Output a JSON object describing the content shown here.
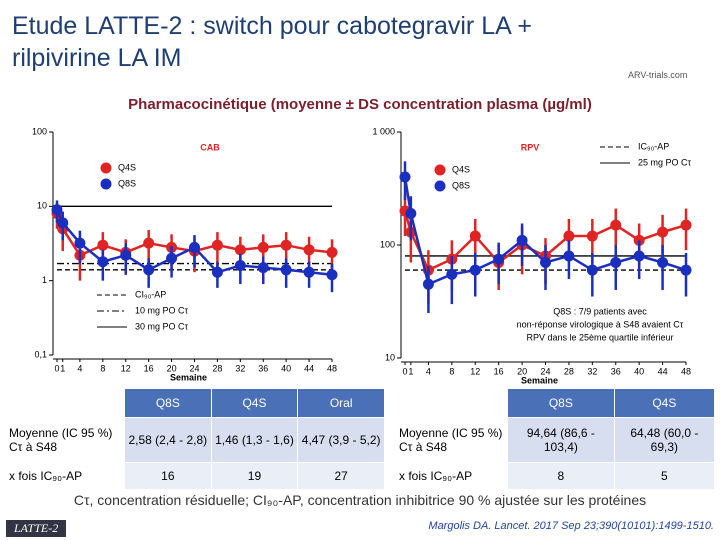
{
  "title": "Etude LATTE-2 : switch pour cabotegravir LA + rilpivirine LA IM",
  "logo": "ARV-trials.com",
  "subtitle": "Pharmacocinétique (moyenne ± DS concentration plasma (µg/ml)",
  "chart_data": [
    {
      "type": "line",
      "title": "CAB",
      "x_label": "Semaine",
      "log_scale": true,
      "x": [
        0,
        1,
        4,
        8,
        12,
        16,
        20,
        24,
        28,
        32,
        36,
        40,
        44,
        48
      ],
      "xlim": [
        0,
        48
      ],
      "xticks": [
        0,
        1,
        4,
        8,
        12,
        16,
        20,
        24,
        28,
        32,
        36,
        40,
        44,
        48
      ],
      "ylim": [
        0.1,
        100
      ],
      "yticks": [
        {
          "value": 0.1,
          "label": "0,1"
        },
        1,
        10,
        100
      ],
      "series": [
        {
          "name": "Q4S",
          "color": "#e02424",
          "values": [
            8,
            5.0,
            2.2,
            3.0,
            2.4,
            3.2,
            2.8,
            2.5,
            3.0,
            2.6,
            2.8,
            3.0,
            2.6,
            2.4
          ],
          "errors": [
            3,
            2.5,
            1.2,
            1.5,
            1.2,
            1.6,
            1.4,
            1.2,
            1.5,
            1.3,
            1.4,
            1.5,
            1.3,
            1.2
          ]
        },
        {
          "name": "Q8S",
          "color": "#1a2fbf",
          "values": [
            9,
            6.0,
            3.2,
            1.8,
            2.2,
            1.4,
            2.0,
            2.8,
            1.3,
            1.6,
            1.5,
            1.4,
            1.3,
            1.2
          ],
          "errors": [
            3,
            2.5,
            1.5,
            0.8,
            1,
            0.6,
            0.9,
            1.3,
            0.5,
            0.7,
            0.6,
            0.6,
            0.5,
            0.5
          ]
        }
      ],
      "reference_lines": [
        {
          "name": "CI₉₀-AP",
          "value": 1.4,
          "style": "dashed"
        },
        {
          "name": "10 mg PO Cτ",
          "value": 1.7,
          "style": "dashdot"
        },
        {
          "name": "30 mg PO Cτ",
          "value": 10,
          "style": "solid"
        }
      ]
    },
    {
      "type": "line",
      "title": "RPV",
      "x_label": "Semaine",
      "log_scale": true,
      "x": [
        0,
        1,
        4,
        8,
        12,
        16,
        20,
        24,
        28,
        32,
        36,
        40,
        44,
        48
      ],
      "xlim": [
        0,
        48
      ],
      "xticks": [
        0,
        1,
        4,
        8,
        12,
        16,
        20,
        24,
        28,
        32,
        36,
        40,
        44,
        48
      ],
      "ylim": [
        10,
        1000
      ],
      "yticks": [
        10,
        100,
        {
          "value": 1000,
          "label": "1 000"
        }
      ],
      "series": [
        {
          "name": "Q4S",
          "color": "#e02424",
          "values": [
            200,
            130,
            60,
            75,
            120,
            70,
            100,
            80,
            120,
            120,
            150,
            110,
            130,
            150
          ],
          "errors": [
            80,
            60,
            30,
            35,
            50,
            30,
            45,
            35,
            50,
            50,
            60,
            45,
            55,
            60
          ]
        },
        {
          "name": "Q8S",
          "color": "#1a2fbf",
          "values": [
            400,
            190,
            45,
            55,
            60,
            75,
            110,
            70,
            80,
            60,
            70,
            80,
            70,
            60
          ],
          "errors": [
            150,
            80,
            20,
            25,
            25,
            30,
            45,
            30,
            30,
            25,
            30,
            30,
            30,
            25
          ]
        }
      ],
      "reference_lines": [
        {
          "name": "IC₉₀-AP",
          "value": 60,
          "style": "dashed"
        },
        {
          "name": "25 mg PO Cτ",
          "value": 80,
          "style": "solid"
        }
      ],
      "annotation": [
        "Q8S : 7/9 patients avec",
        "non-réponse virologique à S48 avaient Cτ",
        "RPV dans le 25ème quartile inférieur"
      ]
    }
  ],
  "tables": [
    {
      "header": [
        "Q8S",
        "Q4S",
        "Oral"
      ],
      "rows": [
        [
          "Moyenne (IC 95 %) Cτ à S48",
          "2,58 (2,4 - 2,8)",
          "1,46 (1,3 - 1,6)",
          "4,47 (3,9 - 5,2)"
        ],
        [
          "x fois IC₉₀-AP",
          "16",
          "19",
          "27"
        ]
      ]
    },
    {
      "header": [
        "Q8S",
        "Q4S"
      ],
      "rows": [
        [
          "Moyenne (IC 95 %) Cτ à S48",
          "94,64 (86,6 - 103,4)",
          "64,48 (60,0 - 69,3)"
        ],
        [
          "x fois IC₉₀-AP",
          "8",
          "5"
        ]
      ]
    }
  ],
  "footnote": "Cτ, concentration résiduelle; CI₉₀-AP, concentration inhibitrice 90 % ajustée sur les protéines",
  "footer_label": "LATTE-2",
  "reference": "Margolis DA. Lancet. 2017 Sep 23;390(10101):1499-1510."
}
